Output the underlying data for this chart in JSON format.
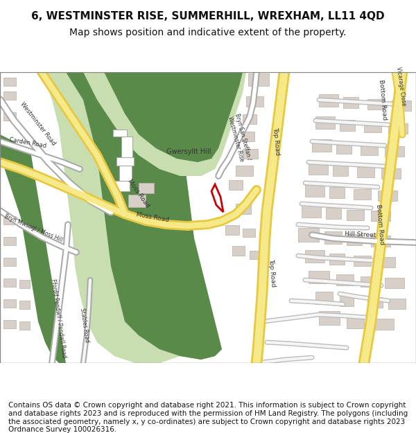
{
  "title": "6, WESTMINSTER RISE, SUMMERHILL, WREXHAM, LL11 4QD",
  "subtitle": "Map shows position and indicative extent of the property.",
  "footer": "Contains OS data © Crown copyright and database right 2021. This information is subject to Crown copyright and database rights 2023 and is reproduced with the permission of HM Land Registry. The polygons (including the associated geometry, namely x, y co-ordinates) are subject to Crown copyright and database rights 2023 Ordnance Survey 100026316.",
  "bg_color": "#ffffff",
  "map_bg": "#f0ede8",
  "green_dark": "#5a8a4a",
  "green_light": "#c8ddb0",
  "road_yellow": "#f5e98a",
  "road_outline": "#e8c840",
  "road_white": "#ffffff",
  "building_color": "#d8d0c8",
  "building_outline": "#b8b0a8",
  "red_plot": "#cc0000",
  "title_fontsize": 11,
  "subtitle_fontsize": 10,
  "footer_fontsize": 7.5
}
